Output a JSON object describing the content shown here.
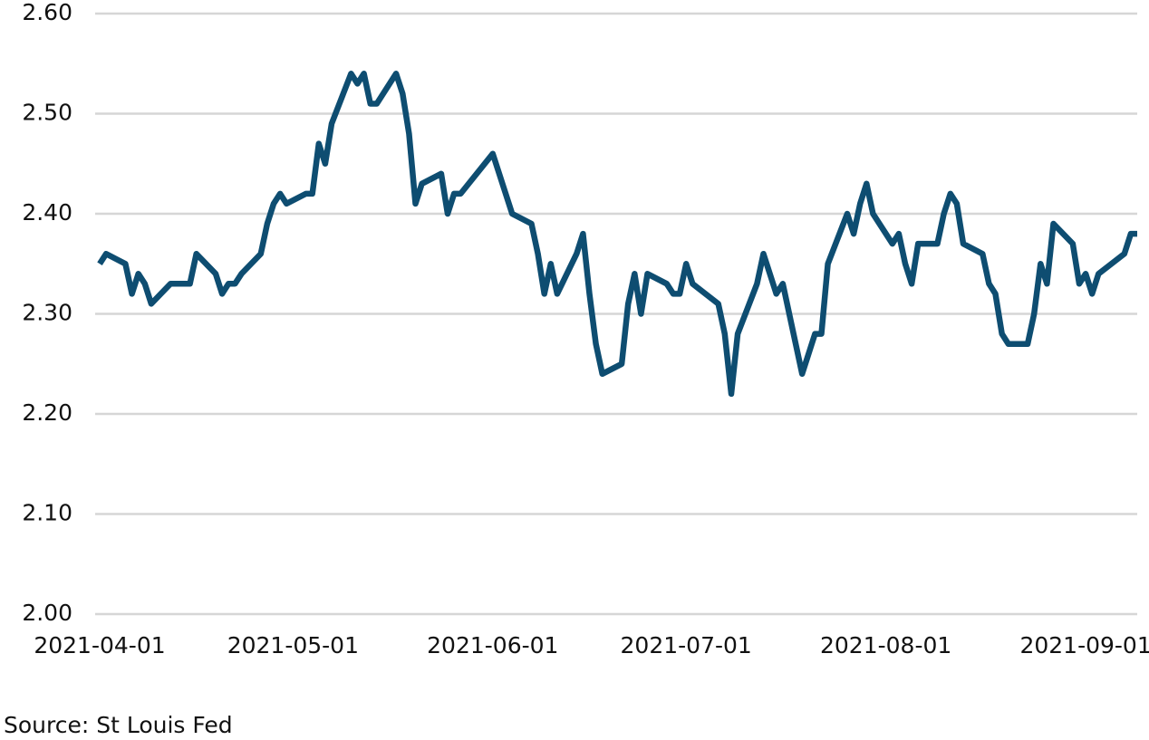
{
  "chart_data": {
    "type": "line",
    "source": "Source: St Louis Fed",
    "x": [
      "2021-04-01",
      "2021-04-02",
      "2021-04-05",
      "2021-04-06",
      "2021-04-07",
      "2021-04-08",
      "2021-04-09",
      "2021-04-12",
      "2021-04-15",
      "2021-04-16",
      "2021-04-19",
      "2021-04-20",
      "2021-04-21",
      "2021-04-22",
      "2021-04-23",
      "2021-04-26",
      "2021-04-27",
      "2021-04-28",
      "2021-04-29",
      "2021-04-30",
      "2021-05-03",
      "2021-05-04",
      "2021-05-05",
      "2021-05-06",
      "2021-05-07",
      "2021-05-10",
      "2021-05-11",
      "2021-05-12",
      "2021-05-13",
      "2021-05-14",
      "2021-05-17",
      "2021-05-18",
      "2021-05-19",
      "2021-05-20",
      "2021-05-21",
      "2021-05-24",
      "2021-05-25",
      "2021-05-26",
      "2021-05-27",
      "2021-06-01",
      "2021-06-04",
      "2021-06-07",
      "2021-06-08",
      "2021-06-09",
      "2021-06-10",
      "2021-06-11",
      "2021-06-14",
      "2021-06-15",
      "2021-06-16",
      "2021-06-17",
      "2021-06-18",
      "2021-06-21",
      "2021-06-22",
      "2021-06-23",
      "2021-06-24",
      "2021-06-25",
      "2021-06-28",
      "2021-06-29",
      "2021-06-30",
      "2021-07-01",
      "2021-07-02",
      "2021-07-06",
      "2021-07-07",
      "2021-07-08",
      "2021-07-09",
      "2021-07-12",
      "2021-07-13",
      "2021-07-14",
      "2021-07-15",
      "2021-07-16",
      "2021-07-19",
      "2021-07-20",
      "2021-07-21",
      "2021-07-22",
      "2021-07-23",
      "2021-07-26",
      "2021-07-27",
      "2021-07-28",
      "2021-07-29",
      "2021-07-30",
      "2021-08-02",
      "2021-08-03",
      "2021-08-04",
      "2021-08-05",
      "2021-08-06",
      "2021-08-09",
      "2021-08-10",
      "2021-08-11",
      "2021-08-12",
      "2021-08-13",
      "2021-08-16",
      "2021-08-17",
      "2021-08-18",
      "2021-08-19",
      "2021-08-20",
      "2021-08-23",
      "2021-08-24",
      "2021-08-25",
      "2021-08-26",
      "2021-08-27",
      "2021-08-30",
      "2021-08-31",
      "2021-09-01",
      "2021-09-02",
      "2021-09-03",
      "2021-09-07",
      "2021-09-08",
      "2021-09-09"
    ],
    "series": [
      {
        "color": "#0e4d71",
        "values": [
          2.35,
          2.36,
          2.35,
          2.32,
          2.34,
          2.33,
          2.31,
          2.33,
          2.33,
          2.36,
          2.34,
          2.32,
          2.33,
          2.33,
          2.34,
          2.36,
          2.39,
          2.41,
          2.42,
          2.41,
          2.42,
          2.42,
          2.47,
          2.45,
          2.49,
          2.54,
          2.53,
          2.54,
          2.51,
          2.51,
          2.54,
          2.52,
          2.48,
          2.41,
          2.43,
          2.44,
          2.4,
          2.42,
          2.42,
          2.46,
          2.4,
          2.39,
          2.36,
          2.32,
          2.35,
          2.32,
          2.36,
          2.38,
          2.32,
          2.27,
          2.24,
          2.25,
          2.31,
          2.34,
          2.3,
          2.34,
          2.33,
          2.32,
          2.32,
          2.35,
          2.33,
          2.31,
          2.28,
          2.22,
          2.28,
          2.33,
          2.36,
          2.34,
          2.32,
          2.33,
          2.24,
          2.26,
          2.28,
          2.28,
          2.35,
          2.4,
          2.38,
          2.41,
          2.43,
          2.4,
          2.37,
          2.38,
          2.35,
          2.33,
          2.37,
          2.37,
          2.4,
          2.42,
          2.41,
          2.37,
          2.36,
          2.33,
          2.32,
          2.28,
          2.27,
          2.27,
          2.3,
          2.35,
          2.33,
          2.39,
          2.37,
          2.33,
          2.34,
          2.32,
          2.34,
          2.36,
          2.38,
          2.38
        ]
      }
    ],
    "xlim": [
      "2021-04-01",
      "2021-09-09"
    ],
    "xticks": [
      "2021-04-01",
      "2021-05-01",
      "2021-06-01",
      "2021-07-01",
      "2021-08-01",
      "2021-09-01"
    ],
    "ylim": [
      2.0,
      2.6
    ],
    "yticks": [
      {
        "value": 2.0,
        "label": "2.00"
      },
      {
        "value": 2.1,
        "label": "2.10"
      },
      {
        "value": 2.2,
        "label": "2.20"
      },
      {
        "value": 2.3,
        "label": "2.30"
      },
      {
        "value": 2.4,
        "label": "2.40"
      },
      {
        "value": 2.5,
        "label": "2.50"
      },
      {
        "value": 2.6,
        "label": "2.60"
      }
    ],
    "grid": true
  }
}
